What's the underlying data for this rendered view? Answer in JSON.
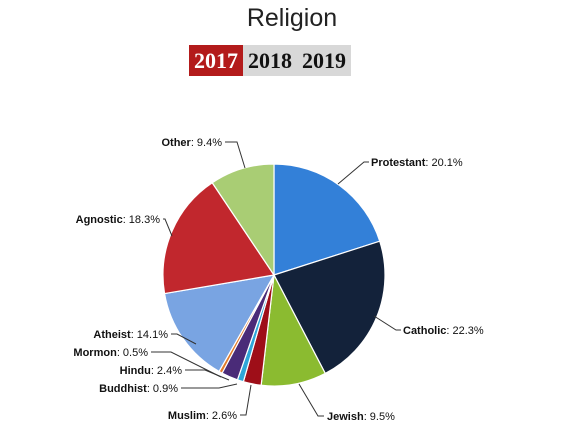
{
  "title": "Religion",
  "years": [
    {
      "label": "2017",
      "active": true
    },
    {
      "label": "2018",
      "active": false
    },
    {
      "label": "2019",
      "active": false
    }
  ],
  "chart_data": {
    "type": "pie",
    "title": "Religion",
    "start_angle_deg": 0,
    "direction": "clockwise",
    "slices": [
      {
        "name": "Protestant",
        "value": 20.1,
        "label_text": "20.1%",
        "color": "#3380d8"
      },
      {
        "name": "Catholic",
        "value": 22.3,
        "label_text": "22.3%",
        "color": "#13223a"
      },
      {
        "name": "Jewish",
        "value": 9.5,
        "label_text": "9.5%",
        "color": "#8bbb30"
      },
      {
        "name": "Muslim",
        "value": 2.6,
        "label_text": "2.6%",
        "color": "#9e0e18"
      },
      {
        "name": "Buddhist",
        "value": 0.9,
        "label_text": "0.9%",
        "color": "#2fa6d8"
      },
      {
        "name": "Hindu",
        "value": 2.4,
        "label_text": "2.4%",
        "color": "#4a2b78"
      },
      {
        "name": "Mormon",
        "value": 0.5,
        "label_text": "0.5%",
        "color": "#e27b2a"
      },
      {
        "name": "Atheist",
        "value": 14.1,
        "label_text": "14.1%",
        "color": "#79a4e2"
      },
      {
        "name": "Agnostic",
        "value": 18.3,
        "label_text": "18.3%",
        "color": "#c1272d"
      },
      {
        "name": "Other",
        "value": 9.4,
        "label_text": "9.4%",
        "color": "#a9cd74"
      }
    ]
  }
}
